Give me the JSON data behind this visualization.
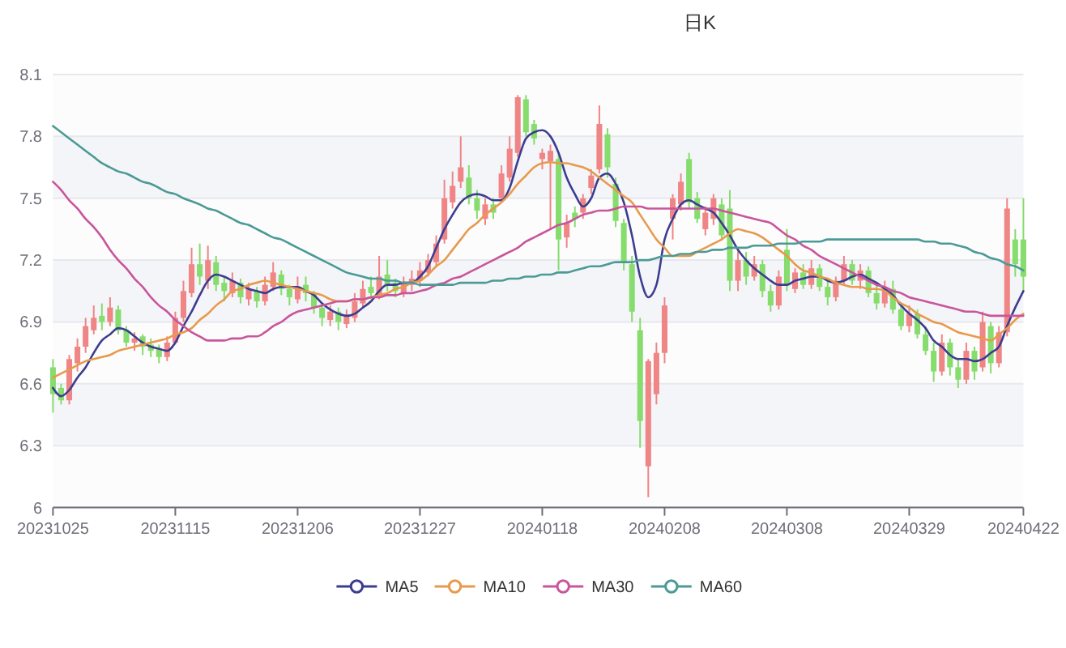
{
  "chart_data": {
    "type": "candlestick",
    "title": "日K",
    "categories": [
      "20231025",
      null,
      null,
      null,
      null,
      null,
      null,
      null,
      null,
      null,
      null,
      null,
      null,
      null,
      null,
      "20231115",
      null,
      null,
      null,
      null,
      null,
      null,
      null,
      null,
      null,
      null,
      null,
      null,
      null,
      null,
      "20231206",
      null,
      null,
      null,
      null,
      null,
      null,
      null,
      null,
      null,
      null,
      null,
      null,
      null,
      null,
      "20231227",
      null,
      null,
      null,
      null,
      null,
      null,
      null,
      null,
      null,
      null,
      null,
      null,
      null,
      null,
      "20240118",
      null,
      null,
      null,
      null,
      null,
      null,
      null,
      null,
      null,
      null,
      null,
      null,
      null,
      null,
      "20240208",
      null,
      null,
      null,
      null,
      null,
      null,
      null,
      null,
      null,
      null,
      null,
      null,
      null,
      null,
      "20240308",
      null,
      null,
      null,
      null,
      null,
      null,
      null,
      null,
      null,
      null,
      null,
      null,
      null,
      null,
      "20240329",
      null,
      null,
      null,
      null,
      null,
      null,
      null,
      null,
      null,
      null,
      null,
      null,
      null,
      "20240422"
    ],
    "ohlc": [
      [
        6.68,
        6.72,
        6.46,
        6.55
      ],
      [
        6.58,
        6.6,
        6.5,
        6.52
      ],
      [
        6.52,
        6.74,
        6.5,
        6.72
      ],
      [
        6.7,
        6.82,
        6.66,
        6.78
      ],
      [
        6.78,
        6.92,
        6.75,
        6.88
      ],
      [
        6.86,
        6.98,
        6.84,
        6.92
      ],
      [
        6.93,
        6.99,
        6.86,
        6.9
      ],
      [
        6.9,
        7.02,
        6.88,
        6.97
      ],
      [
        6.96,
        6.98,
        6.84,
        6.86
      ],
      [
        6.86,
        6.88,
        6.78,
        6.8
      ],
      [
        6.8,
        6.85,
        6.76,
        6.82
      ],
      [
        6.83,
        6.84,
        6.74,
        6.78
      ],
      [
        6.79,
        6.82,
        6.73,
        6.76
      ],
      [
        6.77,
        6.79,
        6.7,
        6.73
      ],
      [
        6.73,
        6.83,
        6.71,
        6.8
      ],
      [
        6.8,
        6.95,
        6.79,
        6.92
      ],
      [
        6.92,
        7.1,
        6.9,
        7.05
      ],
      [
        7.04,
        7.26,
        7.02,
        7.18
      ],
      [
        7.18,
        7.28,
        7.08,
        7.12
      ],
      [
        7.1,
        7.27,
        7.06,
        7.2
      ],
      [
        7.19,
        7.22,
        7.05,
        7.08
      ],
      [
        7.09,
        7.12,
        7.0,
        7.05
      ],
      [
        7.04,
        7.14,
        7.02,
        7.1
      ],
      [
        7.09,
        7.11,
        6.99,
        7.02
      ],
      [
        7.01,
        7.09,
        6.98,
        7.06
      ],
      [
        7.05,
        7.07,
        6.97,
        7.0
      ],
      [
        7.0,
        7.12,
        6.98,
        7.08
      ],
      [
        7.07,
        7.19,
        7.05,
        7.14
      ],
      [
        7.13,
        7.15,
        7.03,
        7.06
      ],
      [
        7.06,
        7.08,
        6.98,
        7.02
      ],
      [
        7.01,
        7.12,
        6.99,
        7.07
      ],
      [
        7.08,
        7.12,
        7.0,
        7.04
      ],
      [
        7.04,
        7.05,
        6.94,
        6.97
      ],
      [
        6.97,
        6.99,
        6.88,
        6.92
      ],
      [
        6.91,
        6.98,
        6.88,
        6.95
      ],
      [
        6.95,
        6.97,
        6.86,
        6.9
      ],
      [
        6.89,
        6.96,
        6.87,
        6.93
      ],
      [
        6.92,
        7.04,
        6.9,
        7.0
      ],
      [
        6.99,
        7.1,
        6.97,
        7.06
      ],
      [
        7.07,
        7.12,
        7.01,
        7.04
      ],
      [
        7.03,
        7.22,
        7.01,
        7.12
      ],
      [
        7.13,
        7.2,
        7.05,
        7.08
      ],
      [
        7.09,
        7.11,
        7.02,
        7.05
      ],
      [
        7.04,
        7.12,
        7.02,
        7.09
      ],
      [
        7.08,
        7.15,
        7.05,
        7.11
      ],
      [
        7.1,
        7.19,
        7.07,
        7.15
      ],
      [
        7.14,
        7.23,
        7.12,
        7.2
      ],
      [
        7.19,
        7.32,
        7.17,
        7.28
      ],
      [
        7.3,
        7.59,
        7.28,
        7.5
      ],
      [
        7.48,
        7.63,
        7.45,
        7.56
      ],
      [
        7.58,
        7.8,
        7.55,
        7.65
      ],
      [
        7.6,
        7.66,
        7.47,
        7.5
      ],
      [
        7.5,
        7.54,
        7.4,
        7.44
      ],
      [
        7.4,
        7.5,
        7.37,
        7.47
      ],
      [
        7.47,
        7.5,
        7.4,
        7.43
      ],
      [
        7.5,
        7.66,
        7.48,
        7.62
      ],
      [
        7.6,
        7.8,
        7.58,
        7.74
      ],
      [
        7.72,
        8.0,
        7.7,
        7.99
      ],
      [
        7.98,
        8.0,
        7.8,
        7.82
      ],
      [
        7.86,
        7.88,
        7.76,
        7.79
      ],
      [
        7.69,
        7.74,
        7.64,
        7.72
      ],
      [
        7.68,
        7.76,
        7.35,
        7.73
      ],
      [
        7.69,
        7.72,
        7.15,
        7.3
      ],
      [
        7.31,
        7.42,
        7.26,
        7.38
      ],
      [
        7.43,
        7.46,
        7.36,
        7.4
      ],
      [
        7.43,
        7.52,
        7.4,
        7.5
      ],
      [
        7.55,
        7.64,
        7.52,
        7.61
      ],
      [
        7.64,
        7.95,
        7.62,
        7.86
      ],
      [
        7.81,
        7.84,
        7.6,
        7.65
      ],
      [
        7.57,
        7.6,
        7.36,
        7.39
      ],
      [
        7.38,
        7.4,
        7.15,
        7.19
      ],
      [
        7.18,
        7.22,
        6.9,
        6.95
      ],
      [
        6.86,
        6.92,
        6.29,
        6.42
      ],
      [
        6.2,
        6.72,
        6.05,
        6.71
      ],
      [
        6.55,
        6.8,
        6.5,
        6.75
      ],
      [
        6.75,
        7.02,
        6.7,
        6.98
      ],
      [
        7.4,
        7.52,
        7.3,
        7.5
      ],
      [
        7.47,
        7.62,
        7.44,
        7.58
      ],
      [
        7.69,
        7.72,
        7.45,
        7.48
      ],
      [
        7.5,
        7.53,
        7.38,
        7.4
      ],
      [
        7.35,
        7.46,
        7.32,
        7.43
      ],
      [
        7.4,
        7.52,
        7.37,
        7.5
      ],
      [
        7.47,
        7.5,
        7.3,
        7.32
      ],
      [
        7.45,
        7.54,
        7.05,
        7.1
      ],
      [
        7.1,
        7.25,
        7.05,
        7.2
      ],
      [
        7.2,
        7.24,
        7.08,
        7.12
      ],
      [
        7.12,
        7.22,
        7.1,
        7.18
      ],
      [
        7.18,
        7.2,
        7.02,
        7.05
      ],
      [
        7.05,
        7.08,
        6.95,
        6.98
      ],
      [
        6.98,
        7.15,
        6.96,
        7.12
      ],
      [
        7.25,
        7.35,
        7.05,
        7.08
      ],
      [
        7.06,
        7.16,
        7.04,
        7.14
      ],
      [
        7.14,
        7.18,
        7.06,
        7.08
      ],
      [
        7.08,
        7.2,
        7.06,
        7.16
      ],
      [
        7.16,
        7.18,
        7.05,
        7.07
      ],
      [
        7.07,
        7.1,
        6.98,
        7.02
      ],
      [
        7.02,
        7.12,
        7.0,
        7.1
      ],
      [
        7.1,
        7.22,
        7.08,
        7.18
      ],
      [
        7.18,
        7.2,
        7.08,
        7.1
      ],
      [
        7.1,
        7.18,
        7.06,
        7.15
      ],
      [
        7.15,
        7.17,
        7.02,
        7.04
      ],
      [
        7.04,
        7.08,
        6.96,
        6.99
      ],
      [
        6.99,
        7.1,
        6.97,
        7.06
      ],
      [
        7.06,
        7.1,
        6.94,
        6.96
      ],
      [
        6.96,
        6.99,
        6.86,
        6.88
      ],
      [
        6.88,
        6.98,
        6.85,
        6.94
      ],
      [
        6.94,
        6.96,
        6.82,
        6.84
      ],
      [
        6.84,
        6.88,
        6.74,
        6.76
      ],
      [
        6.76,
        6.8,
        6.61,
        6.66
      ],
      [
        6.66,
        6.84,
        6.64,
        6.8
      ],
      [
        6.8,
        6.82,
        6.64,
        6.68
      ],
      [
        6.68,
        6.72,
        6.58,
        6.62
      ],
      [
        6.62,
        6.8,
        6.6,
        6.76
      ],
      [
        6.76,
        6.78,
        6.62,
        6.66
      ],
      [
        6.68,
        6.95,
        6.66,
        6.9
      ],
      [
        6.88,
        6.9,
        6.65,
        6.7
      ],
      [
        6.7,
        6.88,
        6.68,
        6.85
      ],
      [
        6.85,
        7.5,
        6.83,
        7.45
      ],
      [
        7.3,
        7.35,
        7.12,
        7.18
      ],
      [
        7.3,
        7.5,
        7.05,
        7.12
      ]
    ],
    "colors": [
      "#86dc6c",
      "#86dc6c",
      "#ef8585",
      "#ef8585",
      "#ef8585",
      "#ef8585",
      "#86dc6c",
      "#ef8585",
      "#86dc6c",
      "#86dc6c",
      "#ef8585",
      "#86dc6c",
      "#86dc6c",
      "#86dc6c",
      "#ef8585",
      "#ef8585",
      "#ef8585",
      "#ef8585",
      "#86dc6c",
      "#ef8585",
      "#86dc6c",
      "#86dc6c",
      "#ef8585",
      "#86dc6c",
      "#ef8585",
      "#86dc6c",
      "#ef8585",
      "#ef8585",
      "#86dc6c",
      "#86dc6c",
      "#ef8585",
      "#86dc6c",
      "#86dc6c",
      "#86dc6c",
      "#ef8585",
      "#86dc6c",
      "#ef8585",
      "#ef8585",
      "#ef8585",
      "#86dc6c",
      "#ef8585",
      "#86dc6c",
      "#86dc6c",
      "#ef8585",
      "#ef8585",
      "#ef8585",
      "#ef8585",
      "#ef8585",
      "#ef8585",
      "#ef8585",
      "#ef8585",
      "#86dc6c",
      "#86dc6c",
      "#ef8585",
      "#86dc6c",
      "#ef8585",
      "#ef8585",
      "#ef8585",
      "#86dc6c",
      "#86dc6c",
      "#ef8585",
      "#ef8585",
      "#86dc6c",
      "#ef8585",
      "#86dc6c",
      "#ef8585",
      "#ef8585",
      "#ef8585",
      "#86dc6c",
      "#86dc6c",
      "#86dc6c",
      "#86dc6c",
      "#86dc6c",
      "#ef8585",
      "#ef8585",
      "#ef8585",
      "#ef8585",
      "#ef8585",
      "#86dc6c",
      "#86dc6c",
      "#ef8585",
      "#ef8585",
      "#86dc6c",
      "#86dc6c",
      "#ef8585",
      "#86dc6c",
      "#ef8585",
      "#86dc6c",
      "#86dc6c",
      "#ef8585",
      "#86dc6c",
      "#ef8585",
      "#86dc6c",
      "#ef8585",
      "#86dc6c",
      "#86dc6c",
      "#ef8585",
      "#ef8585",
      "#86dc6c",
      "#ef8585",
      "#86dc6c",
      "#86dc6c",
      "#ef8585",
      "#86dc6c",
      "#86dc6c",
      "#ef8585",
      "#86dc6c",
      "#86dc6c",
      "#86dc6c",
      "#ef8585",
      "#86dc6c",
      "#86dc6c",
      "#ef8585",
      "#86dc6c",
      "#ef8585",
      "#86dc6c",
      "#ef8585",
      "#ef8585",
      "#86dc6c",
      "#86dc6c"
    ],
    "series": [
      {
        "name": "MA5",
        "type": "line",
        "color": "#3d3d8f",
        "values": [
          6.58,
          6.54,
          6.57,
          6.63,
          6.68,
          6.75,
          6.81,
          6.84,
          6.87,
          6.86,
          6.83,
          6.8,
          6.78,
          6.77,
          6.76,
          6.8,
          6.88,
          6.95,
          7.03,
          7.1,
          7.13,
          7.12,
          7.1,
          7.08,
          7.06,
          7.05,
          7.04,
          7.06,
          7.07,
          7.07,
          7.07,
          7.05,
          7.03,
          6.99,
          6.96,
          6.94,
          6.93,
          6.94,
          6.97,
          7.0,
          7.05,
          7.08,
          7.08,
          7.09,
          7.09,
          7.12,
          7.17,
          7.26,
          7.35,
          7.42,
          7.48,
          7.51,
          7.52,
          7.51,
          7.49,
          7.49,
          7.55,
          7.68,
          7.79,
          7.82,
          7.83,
          7.8,
          7.72,
          7.6,
          7.52,
          7.46,
          7.5,
          7.6,
          7.62,
          7.57,
          7.48,
          7.32,
          7.12,
          7.02,
          7.08,
          7.3,
          7.4,
          7.47,
          7.49,
          7.47,
          7.45,
          7.43,
          7.38,
          7.32,
          7.25,
          7.2,
          7.16,
          7.13,
          7.1,
          7.08,
          7.08,
          7.1,
          7.11,
          7.12,
          7.12,
          7.1,
          7.09,
          7.1,
          7.12,
          7.13,
          7.11,
          7.09,
          7.06,
          7.03,
          6.98,
          6.94,
          6.91,
          6.87,
          6.81,
          6.78,
          6.74,
          6.72,
          6.72,
          6.71,
          6.72,
          6.75,
          6.78,
          6.88,
          6.97,
          7.05
        ]
      },
      {
        "name": "MA10",
        "type": "line",
        "color": "#e89a4c",
        "values": [
          6.63,
          6.65,
          6.67,
          6.69,
          6.71,
          6.72,
          6.73,
          6.74,
          6.76,
          6.77,
          6.78,
          6.79,
          6.8,
          6.81,
          6.82,
          6.84,
          6.85,
          6.87,
          6.91,
          6.94,
          6.98,
          7.01,
          7.05,
          7.06,
          7.08,
          7.09,
          7.1,
          7.09,
          7.08,
          7.07,
          7.06,
          7.05,
          7.04,
          7.03,
          7.01,
          7.0,
          7.0,
          7.01,
          7.01,
          7.02,
          7.03,
          7.04,
          7.06,
          7.07,
          7.09,
          7.1,
          7.13,
          7.17,
          7.2,
          7.25,
          7.3,
          7.35,
          7.38,
          7.42,
          7.45,
          7.48,
          7.52,
          7.57,
          7.61,
          7.65,
          7.67,
          7.675,
          7.67,
          7.67,
          7.66,
          7.65,
          7.63,
          7.6,
          7.57,
          7.54,
          7.51,
          7.48,
          7.42,
          7.36,
          7.3,
          7.26,
          7.22,
          7.22,
          7.22,
          7.24,
          7.26,
          7.28,
          7.3,
          7.33,
          7.35,
          7.34,
          7.33,
          7.31,
          7.28,
          7.25,
          7.22,
          7.18,
          7.15,
          7.14,
          7.12,
          7.11,
          7.09,
          7.08,
          7.07,
          7.07,
          7.06,
          7.06,
          7.05,
          7.02,
          6.99,
          6.97,
          6.94,
          6.92,
          6.9,
          6.89,
          6.87,
          6.85,
          6.84,
          6.83,
          6.82,
          6.81,
          6.84,
          6.87,
          6.91,
          6.94
        ]
      },
      {
        "name": "MA30",
        "type": "line",
        "color": "#c9559b",
        "values": [
          7.58,
          7.54,
          7.49,
          7.45,
          7.4,
          7.36,
          7.31,
          7.25,
          7.2,
          7.16,
          7.11,
          7.07,
          7.02,
          6.98,
          6.95,
          6.91,
          6.88,
          6.85,
          6.83,
          6.81,
          6.81,
          6.81,
          6.82,
          6.82,
          6.83,
          6.83,
          6.85,
          6.88,
          6.9,
          6.93,
          6.95,
          6.96,
          6.97,
          6.98,
          6.99,
          7.0,
          7.0,
          7.01,
          7.01,
          7.02,
          7.02,
          7.03,
          7.03,
          7.04,
          7.04,
          7.05,
          7.06,
          7.08,
          7.09,
          7.11,
          7.12,
          7.14,
          7.16,
          7.18,
          7.2,
          7.22,
          7.24,
          7.26,
          7.29,
          7.31,
          7.33,
          7.35,
          7.37,
          7.38,
          7.4,
          7.42,
          7.43,
          7.44,
          7.44,
          7.45,
          7.46,
          7.46,
          7.46,
          7.45,
          7.45,
          7.45,
          7.45,
          7.45,
          7.45,
          7.45,
          7.45,
          7.45,
          7.44,
          7.43,
          7.42,
          7.41,
          7.4,
          7.39,
          7.38,
          7.35,
          7.32,
          7.3,
          7.27,
          7.25,
          7.22,
          7.2,
          7.18,
          7.16,
          7.14,
          7.12,
          7.1,
          7.08,
          7.07,
          7.05,
          7.04,
          7.02,
          7.01,
          7.0,
          6.99,
          6.98,
          6.97,
          6.96,
          6.95,
          6.95,
          6.94,
          6.93,
          6.93,
          6.93,
          6.93,
          6.93
        ]
      },
      {
        "name": "MA60",
        "type": "line",
        "color": "#4b9a95",
        "values": [
          7.85,
          7.82,
          7.79,
          7.76,
          7.73,
          7.7,
          7.67,
          7.65,
          7.63,
          7.62,
          7.6,
          7.58,
          7.57,
          7.55,
          7.53,
          7.52,
          7.5,
          7.485,
          7.47,
          7.45,
          7.44,
          7.42,
          7.4,
          7.38,
          7.37,
          7.35,
          7.33,
          7.31,
          7.3,
          7.28,
          7.26,
          7.24,
          7.22,
          7.2,
          7.18,
          7.16,
          7.14,
          7.13,
          7.12,
          7.11,
          7.11,
          7.1,
          7.1,
          7.09,
          7.09,
          7.08,
          7.08,
          7.08,
          7.08,
          7.08,
          7.09,
          7.09,
          7.09,
          7.09,
          7.1,
          7.1,
          7.11,
          7.11,
          7.12,
          7.12,
          7.13,
          7.13,
          7.14,
          7.14,
          7.15,
          7.16,
          7.17,
          7.17,
          7.18,
          7.19,
          7.19,
          7.19,
          7.2,
          7.2,
          7.21,
          7.22,
          7.22,
          7.23,
          7.23,
          7.24,
          7.24,
          7.25,
          7.25,
          7.26,
          7.26,
          7.26,
          7.27,
          7.27,
          7.27,
          7.28,
          7.28,
          7.28,
          7.29,
          7.29,
          7.29,
          7.3,
          7.3,
          7.3,
          7.3,
          7.3,
          7.3,
          7.3,
          7.3,
          7.3,
          7.3,
          7.3,
          7.3,
          7.29,
          7.29,
          7.28,
          7.28,
          7.27,
          7.26,
          7.24,
          7.23,
          7.21,
          7.2,
          7.18,
          7.17,
          7.15
        ]
      }
    ],
    "ylim": [
      6,
      8.1
    ],
    "yticks": [
      6,
      6.3,
      6.6,
      6.9,
      7.2,
      7.5,
      7.8,
      8.1
    ],
    "grid": "y",
    "legend": "bottom"
  }
}
